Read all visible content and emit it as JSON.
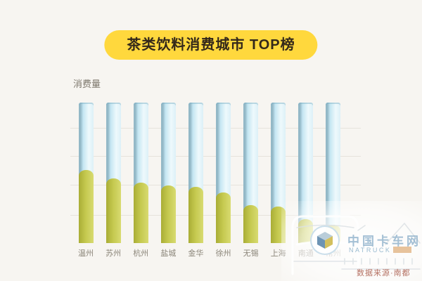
{
  "header": {
    "badge_label": "茶类饮料消费城市 TOP榜",
    "badge_color": "#ffd83d",
    "badge_text_color": "#33281a"
  },
  "chart": {
    "ylabel": "消费量"
  },
  "chart_data": {
    "type": "bar",
    "title": "茶类饮料消费城市 TOP榜",
    "ylabel": "消费量",
    "xlabel": "",
    "categories": [
      "温州",
      "苏州",
      "杭州",
      "盐城",
      "金华",
      "徐州",
      "无锡",
      "上海",
      "南通",
      "常州"
    ],
    "series": [
      {
        "name": "消费量",
        "values": [
          52,
          46,
          43,
          41,
          40,
          36,
          27,
          26,
          17,
          13
        ]
      }
    ],
    "ylim": [
      0,
      100
    ],
    "axis_tick_labels_visible": false,
    "grid": true,
    "legend": false,
    "background_full_bars": true,
    "colors": {
      "value_bar": "#c4c84e",
      "background_bar": "#cdeaf4",
      "gridline": "#e6e3dc",
      "label_text": "#8b8579"
    }
  },
  "watermark": {
    "brand": "中国卡车网",
    "brand_sub": "NATRUCK",
    "source_note": "数据来源·南都",
    "logo_icon": "cube-3d-icon"
  }
}
